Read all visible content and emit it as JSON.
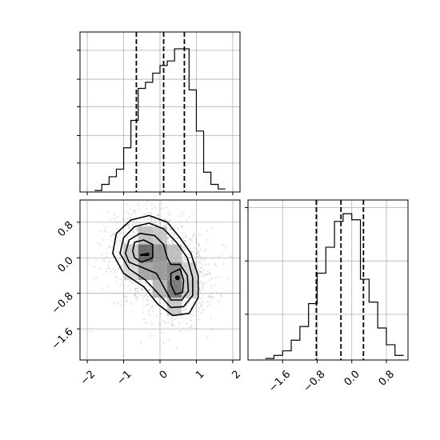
{
  "chart_data": [
    {
      "panel": "top-left",
      "type": "histogram",
      "xlim": [
        -2.2,
        2.2
      ],
      "ylim": [
        0,
        1.05
      ],
      "grid": true,
      "y_tick_values": [
        0.19,
        0.37,
        0.56,
        0.74,
        0.93
      ],
      "x_tick_values": [
        -2,
        -1,
        0,
        1,
        2
      ],
      "bin_edges": [
        -1.8,
        -1.6,
        -1.4,
        -1.2,
        -1.0,
        -0.8,
        -0.6,
        -0.4,
        -0.2,
        0.0,
        0.2,
        0.4,
        0.6,
        0.8,
        1.0,
        1.2,
        1.4,
        1.6,
        1.8
      ],
      "counts": [
        0.01,
        0.05,
        0.1,
        0.15,
        0.29,
        0.47,
        0.68,
        0.72,
        0.78,
        0.83,
        0.86,
        0.94,
        0.94,
        0.67,
        0.4,
        0.13,
        0.05,
        0.02
      ],
      "quantile_lines": [
        -0.65,
        0.1,
        0.67
      ]
    },
    {
      "panel": "bottom-left",
      "type": "scatter-contour",
      "xlim": [
        -2.2,
        2.2
      ],
      "ylim": [
        -2.3,
        1.3
      ],
      "grid": true,
      "x_tick_labels": [
        "−2",
        "−1",
        "0",
        "1",
        "2"
      ],
      "x_tick_values": [
        -2,
        -1,
        0,
        1,
        2
      ],
      "y_tick_labels": [
        "−1.6",
        "−0.8",
        "0.0",
        "0.8"
      ],
      "y_tick_values": [
        -1.6,
        -0.8,
        0.0,
        0.8
      ],
      "modes": [
        {
          "x": -0.4,
          "y": 0.1
        },
        {
          "x": 0.45,
          "y": -0.45
        }
      ],
      "density_cells": [
        {
          "x": -0.4,
          "y": 0.1,
          "level": 0.75
        },
        {
          "x": 0.0,
          "y": 0.1,
          "level": 0.5
        },
        {
          "x": -0.4,
          "y": -0.3,
          "level": 0.4
        },
        {
          "x": 0.0,
          "y": -0.3,
          "level": 0.45
        },
        {
          "x": 0.4,
          "y": -0.3,
          "level": 0.55
        },
        {
          "x": 0.4,
          "y": -0.7,
          "level": 0.65
        },
        {
          "x": 0.0,
          "y": -0.7,
          "level": 0.3
        },
        {
          "x": -0.8,
          "y": 0.1,
          "level": 0.2
        },
        {
          "x": -0.4,
          "y": 0.5,
          "level": 0.25
        },
        {
          "x": 0.0,
          "y": 0.5,
          "level": 0.2
        },
        {
          "x": 0.4,
          "y": 0.1,
          "level": 0.25
        },
        {
          "x": 0.8,
          "y": -0.7,
          "level": 0.2
        },
        {
          "x": 0.4,
          "y": -1.1,
          "level": 0.2
        },
        {
          "x": 0.8,
          "y": -0.3,
          "level": 0.15
        },
        {
          "x": -0.8,
          "y": -0.3,
          "level": 0.12
        }
      ],
      "contours": [
        [
          [
            -1.3,
            0.1
          ],
          [
            -1.2,
            0.55
          ],
          [
            -0.8,
            0.85
          ],
          [
            -0.3,
            0.95
          ],
          [
            0.2,
            0.8
          ],
          [
            0.55,
            0.45
          ],
          [
            0.85,
            0.1
          ],
          [
            1.05,
            -0.4
          ],
          [
            1.05,
            -0.9
          ],
          [
            0.8,
            -1.25
          ],
          [
            0.35,
            -1.3
          ],
          [
            -0.05,
            -1.05
          ],
          [
            -0.45,
            -0.65
          ],
          [
            -1.0,
            -0.35
          ],
          [
            -1.3,
            0.1
          ]
        ],
        [
          [
            -1.1,
            0.1
          ],
          [
            -1.0,
            0.45
          ],
          [
            -0.7,
            0.7
          ],
          [
            -0.3,
            0.78
          ],
          [
            0.1,
            0.65
          ],
          [
            0.45,
            0.35
          ],
          [
            0.75,
            0.0
          ],
          [
            0.9,
            -0.45
          ],
          [
            0.9,
            -0.85
          ],
          [
            0.65,
            -1.1
          ],
          [
            0.3,
            -1.12
          ],
          [
            0.0,
            -0.85
          ],
          [
            -0.4,
            -0.5
          ],
          [
            -0.85,
            -0.25
          ],
          [
            -1.1,
            0.1
          ]
        ],
        [
          [
            -0.95,
            0.1
          ],
          [
            -0.85,
            0.4
          ],
          [
            -0.55,
            0.55
          ],
          [
            -0.15,
            0.5
          ],
          [
            0.1,
            0.3
          ],
          [
            0.2,
            0.0
          ],
          [
            0.3,
            -0.15
          ],
          [
            0.55,
            -0.15
          ],
          [
            0.75,
            -0.4
          ],
          [
            0.78,
            -0.75
          ],
          [
            0.6,
            -0.95
          ],
          [
            0.3,
            -0.95
          ],
          [
            0.1,
            -0.65
          ],
          [
            -0.1,
            -0.35
          ],
          [
            -0.55,
            -0.2
          ],
          [
            -0.85,
            -0.1
          ],
          [
            -0.95,
            0.1
          ]
        ],
        [
          [
            -0.75,
            0.15
          ],
          [
            -0.7,
            0.35
          ],
          [
            -0.45,
            0.4
          ],
          [
            -0.2,
            0.3
          ],
          [
            -0.2,
            0.0
          ],
          [
            -0.5,
            -0.1
          ],
          [
            -0.7,
            0.0
          ],
          [
            -0.75,
            0.15
          ]
        ],
        [
          [
            0.3,
            -0.35
          ],
          [
            0.55,
            -0.25
          ],
          [
            0.65,
            -0.5
          ],
          [
            0.62,
            -0.78
          ],
          [
            0.42,
            -0.82
          ],
          [
            0.3,
            -0.6
          ],
          [
            0.3,
            -0.35
          ]
        ]
      ],
      "inner_blob": [
        [
          -0.55,
          0.08
        ],
        [
          -0.3,
          0.12
        ],
        [
          -0.3,
          0.04
        ],
        [
          -0.55,
          0.04
        ]
      ],
      "inner_dot": {
        "x": 0.48,
        "y": -0.45
      }
    },
    {
      "panel": "bottom-right",
      "type": "histogram",
      "xlim": [
        -2.4,
        1.3
      ],
      "ylim": [
        0,
        1.05
      ],
      "grid": true,
      "x_tick_labels": [
        "−1.6",
        "−0.8",
        "0.0",
        "0.8"
      ],
      "x_tick_values": [
        -1.6,
        -0.8,
        0.0,
        0.8
      ],
      "y_tick_values": [
        0.3,
        0.65,
        1.0
      ],
      "bin_edges": [
        -2.0,
        -1.8,
        -1.6,
        -1.4,
        -1.2,
        -1.0,
        -0.8,
        -0.6,
        -0.4,
        -0.2,
        0.0,
        0.2,
        0.4,
        0.6,
        0.8,
        1.0,
        1.2
      ],
      "counts": [
        0.01,
        0.03,
        0.06,
        0.13,
        0.22,
        0.37,
        0.57,
        0.74,
        0.91,
        0.96,
        0.92,
        0.53,
        0.38,
        0.21,
        0.1,
        0.03
      ],
      "quantile_lines": [
        -0.82,
        -0.25,
        0.27
      ]
    }
  ]
}
